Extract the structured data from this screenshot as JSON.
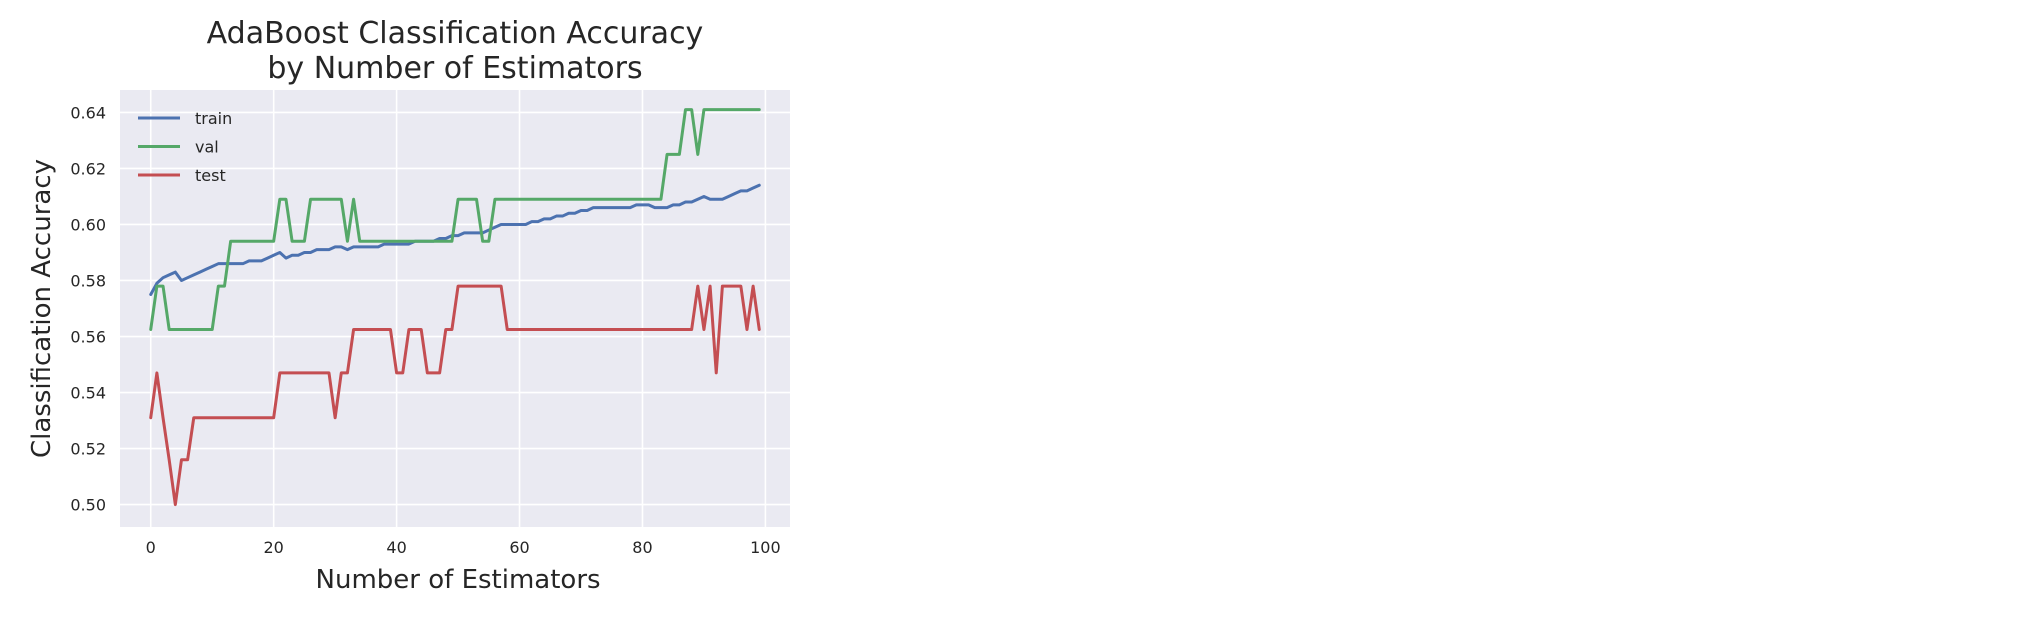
{
  "chart_data": {
    "type": "line",
    "title_lines": [
      "AdaBoost Classification Accuracy",
      "by Number of Estimators"
    ],
    "xlabel": "Number of Estimators",
    "ylabel": "Classification Accuracy",
    "xlim": [
      -5,
      104
    ],
    "ylim": [
      0.492,
      0.648
    ],
    "xticks": [
      0,
      20,
      40,
      60,
      80,
      100
    ],
    "yticks": [
      0.5,
      0.52,
      0.54,
      0.56,
      0.58,
      0.6,
      0.62,
      0.64
    ],
    "grid": true,
    "legend_position": "top-left",
    "series": [
      {
        "name": "train",
        "color": "#4c72b0",
        "x": [
          0,
          1,
          2,
          3,
          4,
          5,
          6,
          7,
          8,
          9,
          10,
          11,
          12,
          13,
          14,
          15,
          16,
          17,
          18,
          19,
          20,
          21,
          22,
          23,
          24,
          25,
          26,
          27,
          28,
          29,
          30,
          31,
          32,
          33,
          34,
          35,
          36,
          37,
          38,
          39,
          40,
          41,
          42,
          43,
          44,
          45,
          46,
          47,
          48,
          49,
          50,
          51,
          52,
          53,
          54,
          55,
          56,
          57,
          58,
          59,
          60,
          61,
          62,
          63,
          64,
          65,
          66,
          67,
          68,
          69,
          70,
          71,
          72,
          73,
          74,
          75,
          76,
          77,
          78,
          79,
          80,
          81,
          82,
          83,
          84,
          85,
          86,
          87,
          88,
          89,
          90,
          91,
          92,
          93,
          94,
          95,
          96,
          97,
          98,
          99
        ],
        "y": [
          0.575,
          0.579,
          0.581,
          0.582,
          0.583,
          0.58,
          0.581,
          0.582,
          0.583,
          0.584,
          0.585,
          0.586,
          0.586,
          0.586,
          0.586,
          0.586,
          0.587,
          0.587,
          0.587,
          0.588,
          0.589,
          0.59,
          0.588,
          0.589,
          0.589,
          0.59,
          0.59,
          0.591,
          0.591,
          0.591,
          0.592,
          0.592,
          0.591,
          0.592,
          0.592,
          0.592,
          0.592,
          0.592,
          0.593,
          0.593,
          0.593,
          0.593,
          0.593,
          0.594,
          0.594,
          0.594,
          0.594,
          0.595,
          0.595,
          0.596,
          0.596,
          0.597,
          0.597,
          0.597,
          0.597,
          0.598,
          0.599,
          0.6,
          0.6,
          0.6,
          0.6,
          0.6,
          0.601,
          0.601,
          0.602,
          0.602,
          0.603,
          0.603,
          0.604,
          0.604,
          0.605,
          0.605,
          0.606,
          0.606,
          0.606,
          0.606,
          0.606,
          0.606,
          0.606,
          0.607,
          0.607,
          0.607,
          0.606,
          0.606,
          0.606,
          0.607,
          0.607,
          0.608,
          0.608,
          0.609,
          0.61,
          0.609,
          0.609,
          0.609,
          0.61,
          0.611,
          0.612,
          0.612,
          0.613,
          0.614
        ]
      },
      {
        "name": "val",
        "color": "#55a868",
        "x": [
          0,
          1,
          2,
          3,
          10,
          11,
          12,
          13,
          20,
          21,
          22,
          23,
          24,
          25,
          26,
          27,
          28,
          29,
          30,
          31,
          32,
          33,
          34,
          35,
          36,
          37,
          38,
          39,
          40,
          41,
          42,
          43,
          44,
          45,
          46,
          47,
          48,
          49,
          50,
          51,
          52,
          53,
          54,
          55,
          56,
          57,
          58,
          59,
          60,
          80,
          83,
          84,
          85,
          86,
          87,
          88,
          89,
          90,
          91,
          99
        ],
        "y": [
          0.5625,
          0.578,
          0.578,
          0.5625,
          0.5625,
          0.578,
          0.578,
          0.594,
          0.594,
          0.609,
          0.609,
          0.594,
          0.594,
          0.594,
          0.609,
          0.609,
          0.609,
          0.609,
          0.609,
          0.609,
          0.594,
          0.609,
          0.594,
          0.594,
          0.594,
          0.594,
          0.594,
          0.594,
          0.594,
          0.594,
          0.594,
          0.594,
          0.594,
          0.594,
          0.594,
          0.594,
          0.594,
          0.594,
          0.609,
          0.609,
          0.609,
          0.609,
          0.594,
          0.594,
          0.609,
          0.609,
          0.609,
          0.609,
          0.609,
          0.609,
          0.609,
          0.625,
          0.625,
          0.625,
          0.641,
          0.641,
          0.625,
          0.641,
          0.641,
          0.641
        ]
      },
      {
        "name": "test",
        "color": "#c44e52",
        "x": [
          0,
          1,
          2,
          3,
          4,
          5,
          6,
          7,
          8,
          9,
          10,
          20,
          21,
          22,
          23,
          24,
          25,
          26,
          27,
          28,
          29,
          30,
          31,
          32,
          33,
          34,
          35,
          36,
          37,
          38,
          39,
          40,
          41,
          42,
          43,
          44,
          45,
          46,
          47,
          48,
          49,
          50,
          51,
          52,
          53,
          54,
          55,
          56,
          57,
          58,
          59,
          60,
          88,
          89,
          90,
          91,
          92,
          93,
          94,
          95,
          96,
          97,
          98,
          99
        ],
        "y": [
          0.531,
          0.547,
          0.531,
          0.516,
          0.5,
          0.516,
          0.516,
          0.531,
          0.531,
          0.531,
          0.531,
          0.531,
          0.547,
          0.547,
          0.547,
          0.547,
          0.547,
          0.547,
          0.547,
          0.547,
          0.547,
          0.531,
          0.547,
          0.547,
          0.5625,
          0.5625,
          0.5625,
          0.5625,
          0.5625,
          0.5625,
          0.5625,
          0.547,
          0.547,
          0.5625,
          0.5625,
          0.5625,
          0.547,
          0.547,
          0.547,
          0.5625,
          0.5625,
          0.578,
          0.578,
          0.578,
          0.578,
          0.578,
          0.578,
          0.578,
          0.578,
          0.5625,
          0.5625,
          0.5625,
          0.5625,
          0.578,
          0.5625,
          0.578,
          0.547,
          0.578,
          0.578,
          0.578,
          0.578,
          0.5625,
          0.578,
          0.5625
        ]
      }
    ]
  }
}
